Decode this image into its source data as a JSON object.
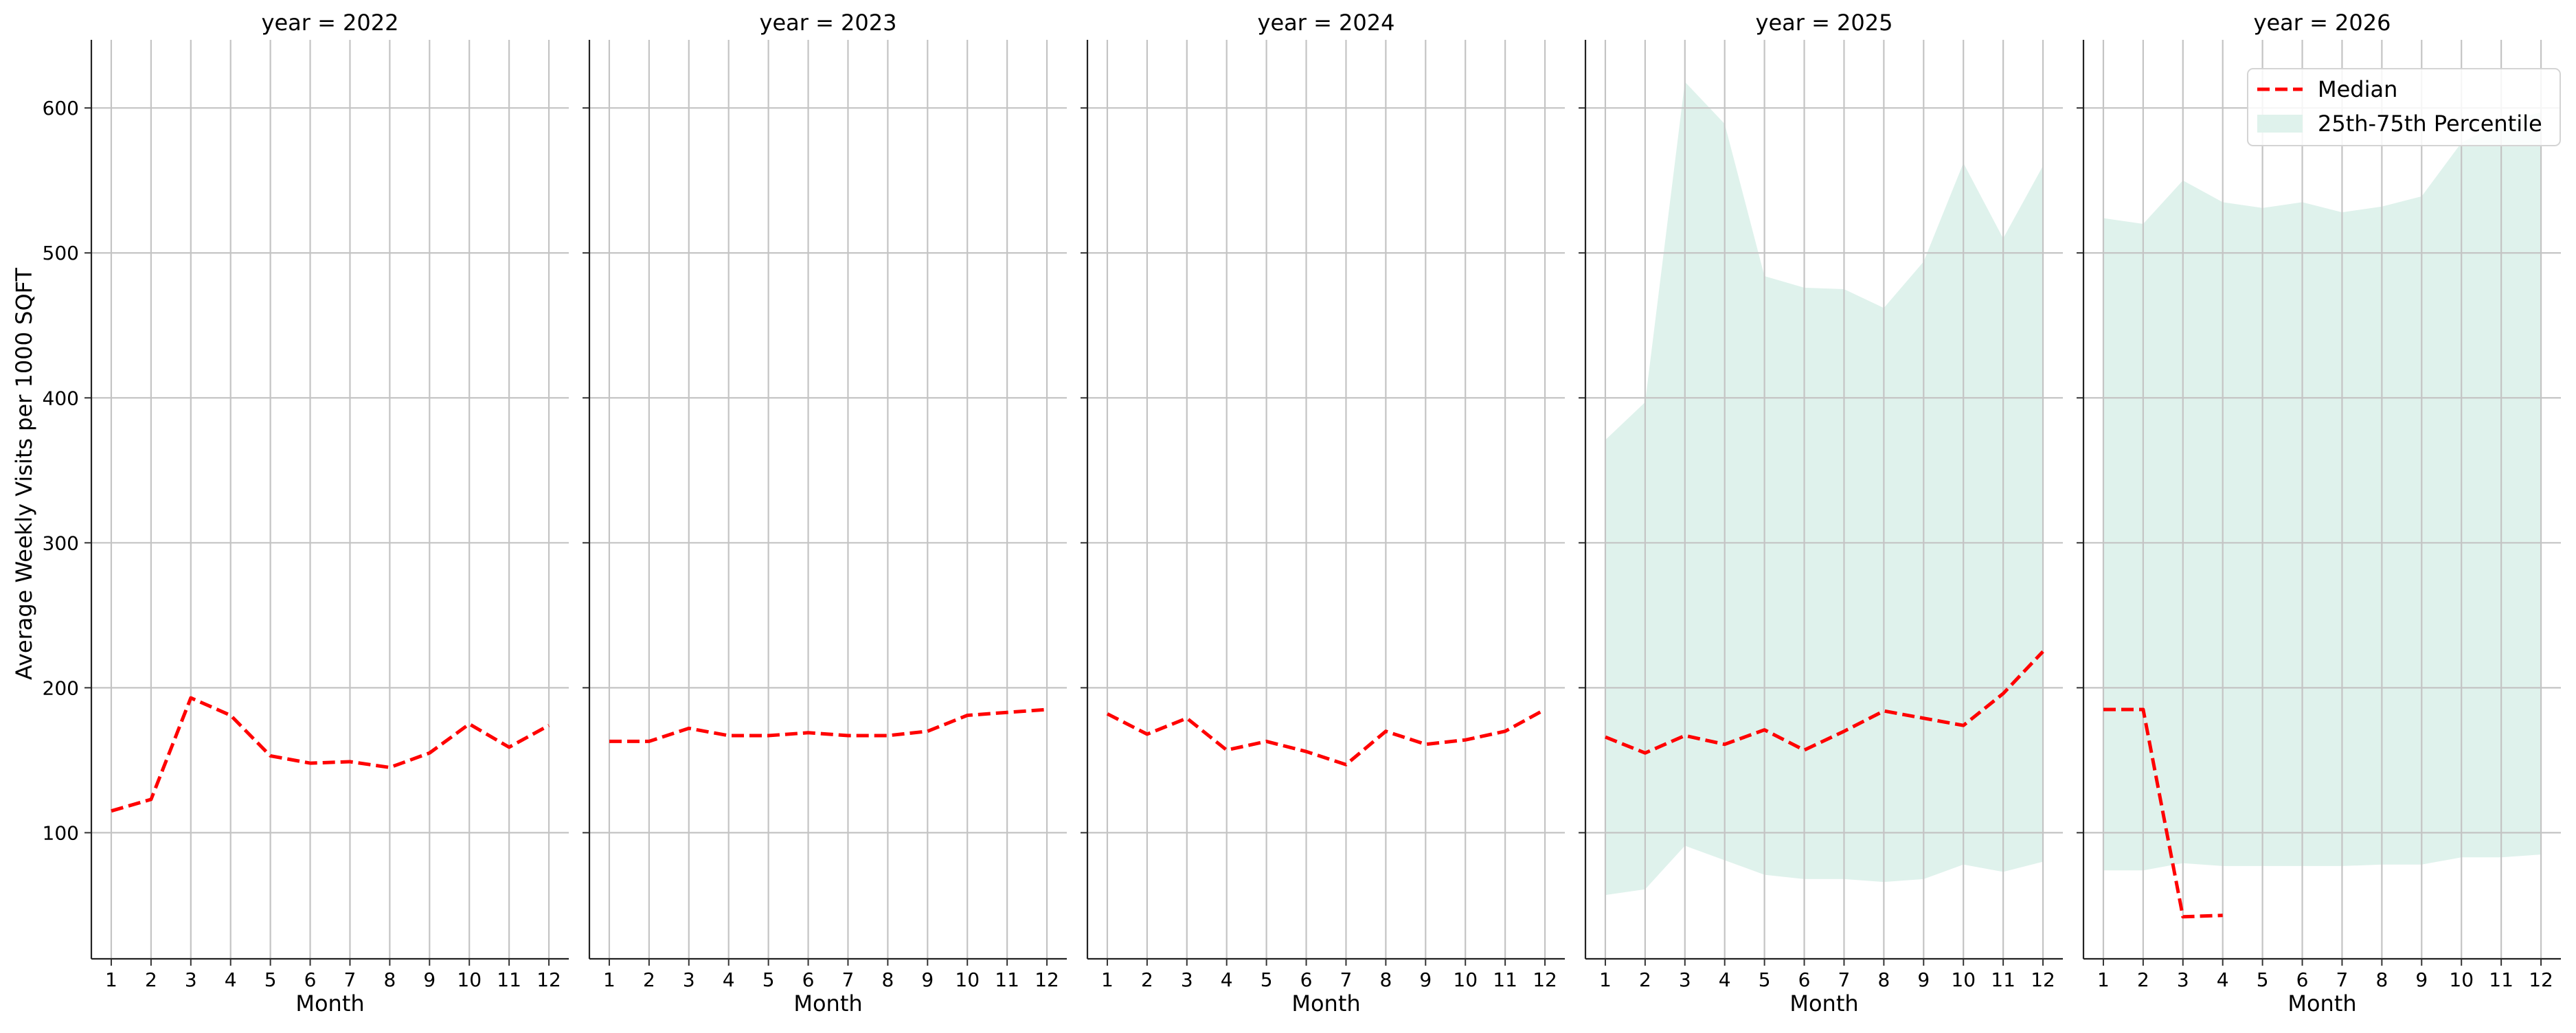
{
  "chart_data": {
    "type": "line",
    "ylabel": "Average Weekly Visits per 1000 SQFT",
    "xlabel": "Month",
    "x": [
      1,
      2,
      3,
      4,
      5,
      6,
      7,
      8,
      9,
      10,
      11,
      12
    ],
    "x_ticks": [
      "1",
      "2",
      "3",
      "4",
      "5",
      "6",
      "7",
      "8",
      "9",
      "10",
      "11",
      "12"
    ],
    "y_ticks": [
      "100",
      "200",
      "300",
      "400",
      "500",
      "600"
    ],
    "ylim": [
      13,
      647
    ],
    "xlim": [
      0.5,
      12.5
    ],
    "grid": true,
    "legend": {
      "location": "top-right",
      "entries": [
        {
          "label": "Median",
          "style": "dashed-line",
          "color": "#ff0000"
        },
        {
          "label": "25th-75th Percentile",
          "style": "fill",
          "color": "#dff2ec"
        }
      ]
    },
    "panels": [
      {
        "title": "year = 2022",
        "median": [
          115,
          123,
          193,
          181,
          153,
          148,
          149,
          145,
          155,
          175,
          159,
          174
        ],
        "p25": null,
        "p75": null
      },
      {
        "title": "year = 2023",
        "median": [
          163,
          163,
          172,
          167,
          167,
          169,
          167,
          167,
          170,
          181,
          183,
          185
        ],
        "p25": null,
        "p75": null
      },
      {
        "title": "year = 2024",
        "median": [
          182,
          168,
          179,
          157,
          163,
          156,
          147,
          170,
          161,
          164,
          170,
          185
        ],
        "p25": null,
        "p75": null
      },
      {
        "title": "year = 2025",
        "median": [
          166,
          155,
          167,
          161,
          171,
          157,
          170,
          184,
          179,
          174,
          196,
          225
        ],
        "p25": [
          57,
          61,
          91,
          81,
          71,
          68,
          68,
          66,
          68,
          78,
          73,
          80
        ],
        "p75": [
          371,
          397,
          618,
          589,
          484,
          476,
          475,
          462,
          494,
          562,
          510,
          560
        ]
      },
      {
        "title": "year = 2026",
        "median": [
          185,
          185,
          42,
          43,
          null,
          null,
          null,
          null,
          null,
          null,
          null,
          null
        ],
        "p25": [
          74,
          74,
          79,
          77,
          77,
          77,
          77,
          78,
          78,
          83,
          83,
          85
        ],
        "p75": [
          524,
          520,
          550,
          535,
          531,
          535,
          528,
          532,
          539,
          576,
          590,
          597
        ]
      }
    ]
  }
}
